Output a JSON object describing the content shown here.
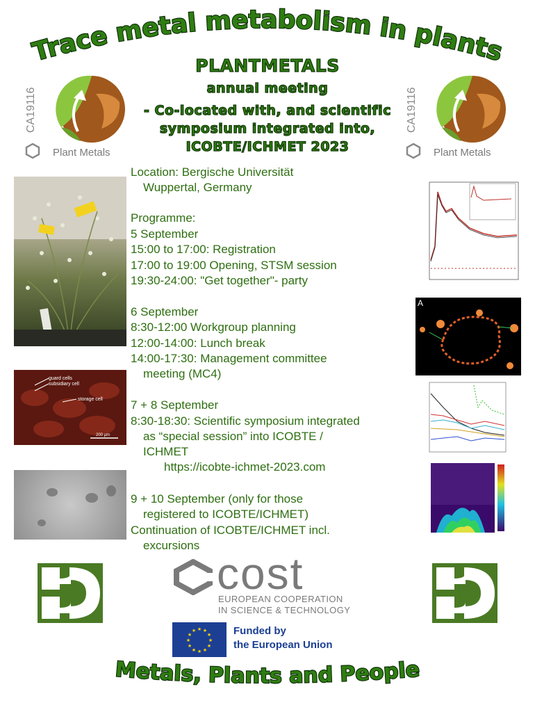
{
  "title": "Trace metal metabolism in plants",
  "subtitle": "PLANTMETALS",
  "header_lines": [
    "annual meeting",
    "- Co-located with, and scientific",
    "symposium integrated into,",
    "ICOBTE/ICHMET 2023"
  ],
  "logo": {
    "code": "CA19116",
    "name": "Plant Metals"
  },
  "location": {
    "line1": "Location: Bergische Universität",
    "line2": "Wuppertal, Germany"
  },
  "programme_label": "Programme:",
  "days": [
    {
      "heading": "5 September",
      "items": [
        "15:00 to 17:00: Registration",
        "17:00 to 19:00 Opening, STSM session",
        "19:30-24:00: \"Get together\"- party"
      ]
    },
    {
      "heading": "6 September",
      "items": [
        "8:30-12:00 Workgroup planning",
        "12:00-14:00: Lunch break",
        "14:00-17:30: Management committee",
        "meeting (MC4)"
      ]
    },
    {
      "heading": "7 + 8 September",
      "items": [
        "8:30-18:30: Scientific symposium integrated",
        "as “special session” into ICOBTE /",
        "ICHMET"
      ],
      "link": "https://icobte-ichmet-2023.com"
    },
    {
      "heading_line1": "9 + 10 September (only for those",
      "heading_line2": "registered to ICOBTE/ICHMET)",
      "items": [
        "Continuation of ICOBTE/ICHMET incl.",
        "excursions"
      ]
    }
  ],
  "photo_labels": {
    "guard": "guard cells",
    "subsidiary": "subsidiary cell",
    "storage": "storage cell",
    "scale": "200 µm"
  },
  "panel_letter": "A",
  "cost": {
    "name": "cost",
    "line1": "EUROPEAN COOPERATION",
    "line2": "IN SCIENCE & TECHNOLOGY"
  },
  "eu": {
    "line1": "Funded by",
    "line2": "the European Union"
  },
  "footer": "Metals, Plants and People",
  "colors": {
    "green": "#2f6f12",
    "dark_green": "#4a7a24",
    "eu_blue": "#1c3f94",
    "eu_yellow": "#ffd500",
    "logo_brown": "#a0581c"
  }
}
